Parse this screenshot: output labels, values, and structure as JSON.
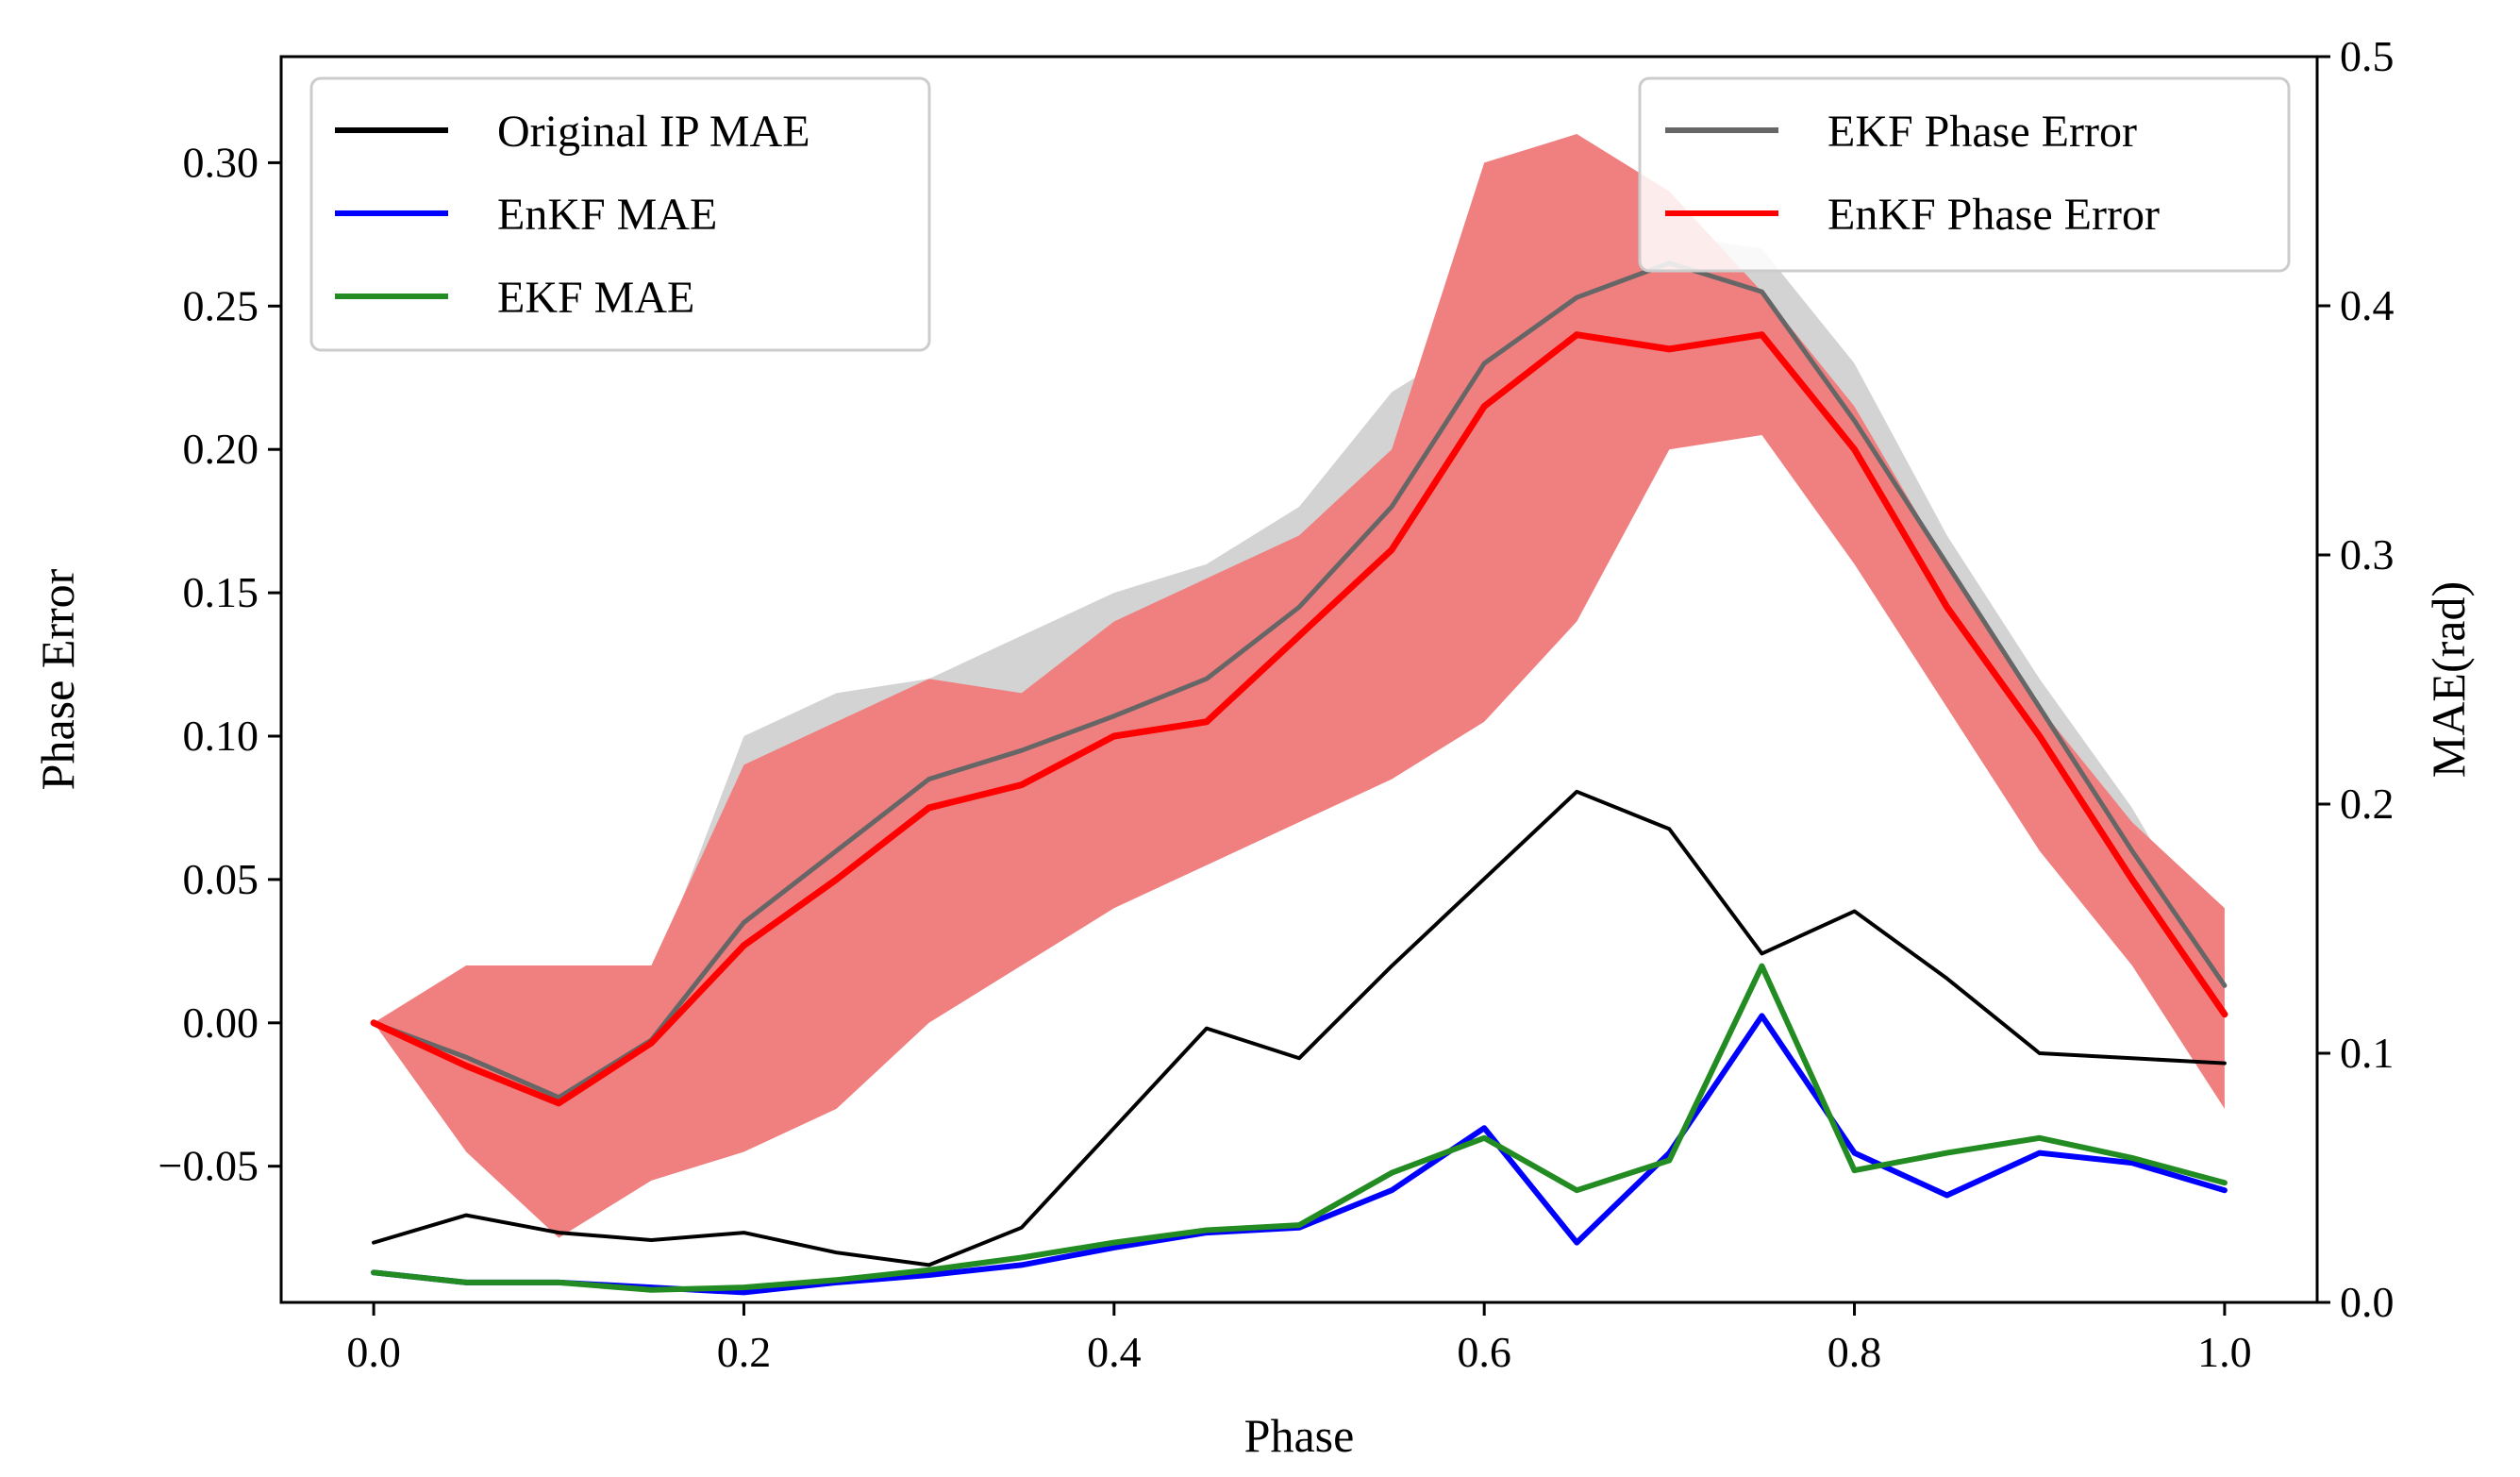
{
  "chart_data": {
    "type": "line",
    "title": "",
    "xlabel": "Phase",
    "ylabel": "Phase Error",
    "y2label": "MAE(rad)",
    "xlim": [
      -0.05,
      1.05
    ],
    "ylim": [
      -0.0975,
      0.337
    ],
    "y2lim": [
      0.0,
      0.5
    ],
    "xticks": [
      "0.0",
      "0.2",
      "0.4",
      "0.6",
      "0.8",
      "1.0"
    ],
    "xtick_values": [
      0.0,
      0.2,
      0.4,
      0.6,
      0.8,
      1.0
    ],
    "yticks": [
      "−0.05",
      "0.00",
      "0.05",
      "0.10",
      "0.15",
      "0.20",
      "0.25",
      "0.30"
    ],
    "ytick_values": [
      -0.05,
      0.0,
      0.05,
      0.1,
      0.15,
      0.2,
      0.25,
      0.3
    ],
    "y2ticks": [
      "0.0",
      "0.1",
      "0.2",
      "0.3",
      "0.4",
      "0.5"
    ],
    "y2tick_values": [
      0.0,
      0.1,
      0.2,
      0.3,
      0.4,
      0.5
    ],
    "legend_left": {
      "placement": "upper-left",
      "entries": [
        {
          "label": "Original IP MAE",
          "color": "#000000"
        },
        {
          "label": "EnKF MAE",
          "color": "#0000ff"
        },
        {
          "label": "EKF MAE",
          "color": "#228b22"
        }
      ]
    },
    "legend_right": {
      "placement": "upper-right",
      "entries": [
        {
          "label": "EKF Phase Error",
          "color": "#666666"
        },
        {
          "label": "EnKF Phase Error",
          "color": "#ff0000"
        }
      ]
    },
    "x": [
      0.0,
      0.05,
      0.1,
      0.15,
      0.2,
      0.25,
      0.3,
      0.35,
      0.4,
      0.45,
      0.5,
      0.55,
      0.6,
      0.65,
      0.7,
      0.75,
      0.8,
      0.85,
      0.9,
      0.95,
      1.0
    ],
    "bands": [
      {
        "name": "EKF Phase Error band",
        "axis": "left",
        "color": "#d3d3d3",
        "lower": [
          0.0,
          -0.015,
          -0.028,
          0.0,
          0.04,
          0.065,
          0.09,
          0.095,
          0.11,
          0.115,
          0.14,
          0.17,
          0.23,
          0.26,
          0.266,
          0.255,
          0.21,
          0.15,
          0.1,
          0.055,
          0.01
        ],
        "upper": [
          0.0,
          -0.01,
          -0.025,
          0.015,
          0.1,
          0.115,
          0.12,
          0.135,
          0.15,
          0.16,
          0.18,
          0.22,
          0.24,
          0.27,
          0.275,
          0.27,
          0.23,
          0.17,
          0.12,
          0.075,
          0.02
        ]
      },
      {
        "name": "EnKF Phase Error band",
        "axis": "left",
        "color": "#f08080",
        "lower": [
          0.0,
          -0.045,
          -0.075,
          -0.055,
          -0.045,
          -0.03,
          0.0,
          0.02,
          0.04,
          0.055,
          0.07,
          0.085,
          0.105,
          0.14,
          0.2,
          0.205,
          0.16,
          0.11,
          0.06,
          0.02,
          -0.03
        ],
        "upper": [
          0.0,
          0.02,
          0.02,
          0.02,
          0.09,
          0.105,
          0.12,
          0.115,
          0.14,
          0.155,
          0.17,
          0.2,
          0.3,
          0.31,
          0.29,
          0.255,
          0.215,
          0.16,
          0.11,
          0.07,
          0.04
        ]
      }
    ],
    "series": [
      {
        "name": "EKF Phase Error",
        "axis": "left",
        "color": "#666666",
        "width": 5,
        "values": [
          0.0,
          -0.012,
          -0.026,
          -0.006,
          0.035,
          0.06,
          0.085,
          0.095,
          0.107,
          0.12,
          0.145,
          0.18,
          0.23,
          0.253,
          0.265,
          0.255,
          0.21,
          0.16,
          0.11,
          0.06,
          0.013
        ]
      },
      {
        "name": "EnKF Phase Error",
        "axis": "left",
        "color": "#ff0000",
        "width": 7,
        "values": [
          0.0,
          -0.015,
          -0.028,
          -0.007,
          0.027,
          0.05,
          0.075,
          0.083,
          0.1,
          0.105,
          0.135,
          0.165,
          0.215,
          0.24,
          0.235,
          0.24,
          0.2,
          0.145,
          0.1,
          0.05,
          0.003
        ]
      },
      {
        "name": "Original IP MAE",
        "axis": "right",
        "color": "#000000",
        "width": 4,
        "values": [
          0.024,
          0.035,
          0.028,
          0.025,
          0.028,
          0.02,
          0.015,
          0.03,
          0.07,
          0.11,
          0.098,
          0.135,
          0.17,
          0.205,
          0.19,
          0.14,
          0.157,
          0.13,
          0.1,
          0.098,
          0.096
        ]
      },
      {
        "name": "EnKF MAE",
        "axis": "right",
        "color": "#0000ff",
        "width": 6,
        "values": [
          0.012,
          0.008,
          0.008,
          0.006,
          0.004,
          0.008,
          0.011,
          0.015,
          0.022,
          0.028,
          0.03,
          0.045,
          0.07,
          0.024,
          0.06,
          0.115,
          0.06,
          0.043,
          0.06,
          0.056,
          0.045
        ]
      },
      {
        "name": "EKF MAE",
        "axis": "right",
        "color": "#228b22",
        "width": 6,
        "values": [
          0.012,
          0.008,
          0.008,
          0.005,
          0.006,
          0.009,
          0.013,
          0.018,
          0.024,
          0.029,
          0.031,
          0.052,
          0.066,
          0.045,
          0.057,
          0.135,
          0.053,
          0.06,
          0.066,
          0.058,
          0.048
        ]
      }
    ]
  }
}
